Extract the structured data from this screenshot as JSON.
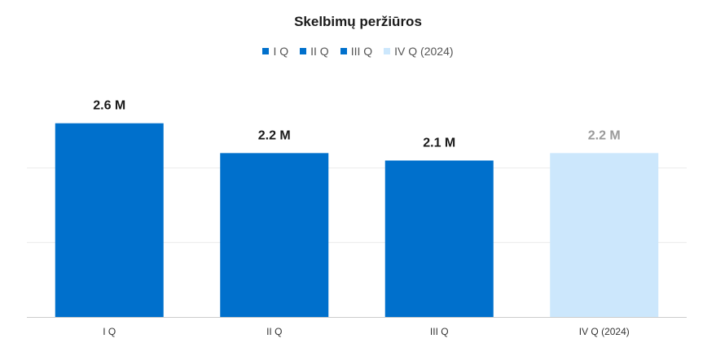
{
  "chart_data": {
    "type": "bar",
    "title": "Skelbimų peržiūros",
    "categories": [
      "I Q",
      "II Q",
      "III Q",
      "IV Q (2024)"
    ],
    "values": [
      2.6,
      2.2,
      2.1,
      2.2
    ],
    "value_labels": [
      "2.6 M",
      "2.2 M",
      "2.1 M",
      "2.2 M"
    ],
    "colors": [
      "#0070CC",
      "#0070CC",
      "#0070CC",
      "#CCE7FC"
    ],
    "value_label_colors": [
      "#1a1a1a",
      "#1a1a1a",
      "#1a1a1a",
      "#9a9a9a"
    ],
    "legend": [
      "I Q",
      "II Q",
      "III Q",
      "IV Q (2024)"
    ],
    "legend_position": "top-center",
    "xlabel": "",
    "ylabel": "",
    "ylim": [
      0,
      3
    ],
    "grid": true
  }
}
